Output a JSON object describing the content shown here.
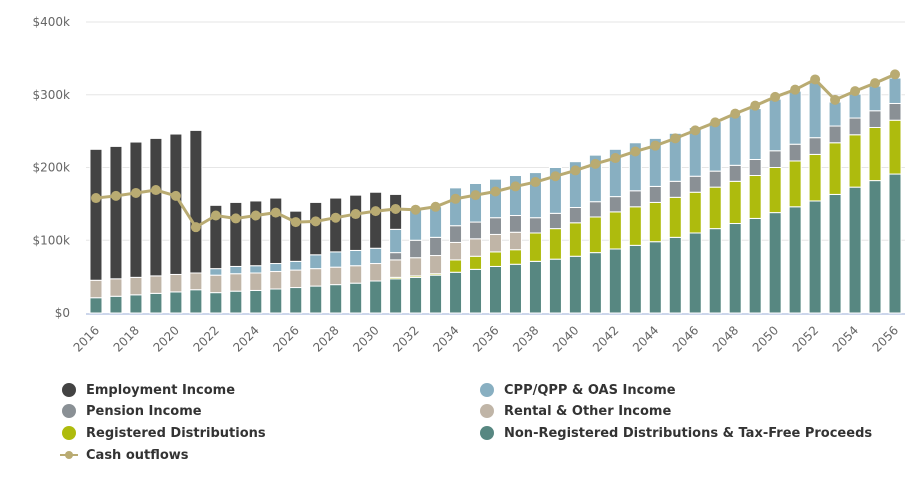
{
  "chart_data": {
    "type": "bar",
    "stacked": true,
    "title": "",
    "xlabel": "",
    "ylabel": "",
    "ylim": [
      0,
      400000
    ],
    "yticks": [
      {
        "value": 0,
        "label": "$0"
      },
      {
        "value": 100000,
        "label": "$100k"
      },
      {
        "value": 200000,
        "label": "$200k"
      },
      {
        "value": 300000,
        "label": "$300k"
      },
      {
        "value": 400000,
        "label": "$400k"
      }
    ],
    "grid": true,
    "legend_position": "bottom",
    "categories": [
      "2016",
      "2017",
      "2018",
      "2019",
      "2020",
      "2021",
      "2022",
      "2023",
      "2024",
      "2025",
      "2026",
      "2027",
      "2028",
      "2029",
      "2030",
      "2031",
      "2032",
      "2033",
      "2034",
      "2035",
      "2036",
      "2037",
      "2038",
      "2039",
      "2040",
      "2041",
      "2042",
      "2043",
      "2044",
      "2045",
      "2046",
      "2047",
      "2048",
      "2049",
      "2050",
      "2051",
      "2052",
      "2053",
      "2054",
      "2055",
      "2056"
    ],
    "xtick_labels": [
      "2016",
      "2018",
      "2020",
      "2022",
      "2024",
      "2026",
      "2028",
      "2030",
      "2032",
      "2034",
      "2036",
      "2038",
      "2040",
      "2042",
      "2044",
      "2046",
      "2048",
      "2050",
      "2052",
      "2054",
      "2056"
    ],
    "series": [
      {
        "name": "Non-Registered Distributions & Tax-Free Proceeds",
        "color": "#578781",
        "type": "bar",
        "values": [
          21000,
          23000,
          25000,
          27000,
          29000,
          32000,
          28000,
          30000,
          31000,
          33000,
          35000,
          37000,
          39000,
          41000,
          44000,
          47000,
          49000,
          52000,
          56000,
          60000,
          64000,
          67000,
          71000,
          74000,
          78000,
          83000,
          88000,
          93000,
          98000,
          104000,
          110000,
          116000,
          123000,
          130000,
          138000,
          146000,
          154000,
          163000,
          173000,
          182000,
          191000
        ]
      },
      {
        "name": "Registered Distributions",
        "color": "#aebb0d",
        "type": "bar",
        "values": [
          0,
          0,
          0,
          0,
          0,
          0,
          0,
          0,
          0,
          0,
          0,
          0,
          0,
          0,
          0,
          2000,
          2000,
          2000,
          17000,
          18000,
          20000,
          20000,
          39000,
          42000,
          46000,
          49000,
          51000,
          53000,
          54000,
          55000,
          56000,
          57000,
          58000,
          59000,
          62000,
          63000,
          64000,
          71000,
          72000,
          73000,
          74000
        ]
      },
      {
        "name": "Rental & Other Income",
        "color": "#c0b5a7",
        "type": "bar",
        "values": [
          24000,
          24000,
          24000,
          24000,
          24000,
          23000,
          24000,
          24000,
          24000,
          24000,
          24000,
          24000,
          24000,
          24000,
          24000,
          24000,
          25000,
          25000,
          24000,
          24000,
          24000,
          24000,
          0,
          0,
          0,
          0,
          0,
          0,
          0,
          0,
          0,
          0,
          0,
          0,
          0,
          0,
          0,
          0,
          0,
          0,
          0
        ]
      },
      {
        "name": "Pension Income",
        "color": "#8a9095",
        "type": "bar",
        "values": [
          0,
          0,
          0,
          0,
          0,
          0,
          0,
          0,
          0,
          0,
          0,
          0,
          0,
          0,
          0,
          10000,
          24000,
          25000,
          23000,
          23000,
          23000,
          23000,
          21000,
          21000,
          21000,
          21000,
          21000,
          22000,
          22000,
          22000,
          22000,
          22000,
          22000,
          22000,
          23000,
          23000,
          23000,
          23000,
          23000,
          23000,
          23000
        ]
      },
      {
        "name": "CPP/QPP & OAS Income",
        "color": "#88afc1",
        "type": "bar",
        "values": [
          0,
          0,
          0,
          0,
          0,
          0,
          9000,
          10000,
          10000,
          11000,
          12000,
          19000,
          21000,
          21000,
          21000,
          32000,
          42000,
          42000,
          52000,
          53000,
          53000,
          55000,
          62000,
          63000,
          63000,
          64000,
          65000,
          66000,
          66000,
          66000,
          67000,
          68000,
          69000,
          70000,
          71000,
          73000,
          76000,
          33000,
          33000,
          34000,
          35000
        ]
      },
      {
        "name": "Employment Income",
        "color": "#434343",
        "type": "bar",
        "values": [
          180000,
          182000,
          186000,
          189000,
          193000,
          196000,
          87000,
          88000,
          89000,
          90000,
          69000,
          72000,
          74000,
          76000,
          77000,
          48000,
          0,
          0,
          0,
          0,
          0,
          0,
          0,
          0,
          0,
          0,
          0,
          0,
          0,
          0,
          0,
          0,
          0,
          0,
          0,
          0,
          0,
          0,
          0,
          0,
          0
        ]
      },
      {
        "name": "Cash outflows",
        "color": "#b9ab72",
        "type": "line",
        "values": [
          158000,
          161000,
          165000,
          169000,
          161000,
          118000,
          134000,
          130000,
          134000,
          138000,
          125000,
          126000,
          131000,
          136000,
          140000,
          143000,
          142000,
          146000,
          157000,
          162000,
          167000,
          174000,
          180000,
          188000,
          196000,
          205000,
          213000,
          222000,
          230000,
          240000,
          251000,
          262000,
          274000,
          285000,
          297000,
          307000,
          321000,
          293000,
          305000,
          316000,
          328000
        ]
      }
    ]
  },
  "legend": {
    "items": [
      {
        "label": "Employment Income",
        "color": "#434343",
        "marker": "dot"
      },
      {
        "label": "CPP/QPP & OAS Income",
        "color": "#88afc1",
        "marker": "dot"
      },
      {
        "label": "Pension Income",
        "color": "#8a9095",
        "marker": "dot"
      },
      {
        "label": "Rental & Other Income",
        "color": "#c0b5a7",
        "marker": "dot"
      },
      {
        "label": "Registered Distributions",
        "color": "#aebb0d",
        "marker": "dot"
      },
      {
        "label": "Non-Registered Distributions & Tax-Free Proceeds",
        "color": "#578781",
        "marker": "dot"
      },
      {
        "label": "Cash outflows",
        "color": "#b9ab72",
        "marker": "line"
      }
    ]
  }
}
